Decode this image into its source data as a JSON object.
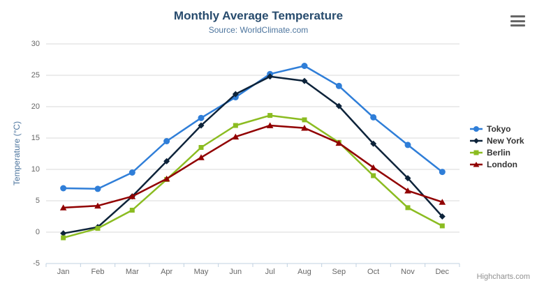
{
  "chart_data": {
    "type": "line",
    "title": "Monthly Average Temperature",
    "subtitle": "Source: WorldClimate.com",
    "categories": [
      "Jan",
      "Feb",
      "Mar",
      "Apr",
      "May",
      "Jun",
      "Jul",
      "Aug",
      "Sep",
      "Oct",
      "Nov",
      "Dec"
    ],
    "xlabel": "",
    "ylabel": "Temperature (°C)",
    "ylim": [
      -5,
      30
    ],
    "ytick_step": 5,
    "yticks": [
      "30",
      "25",
      "20",
      "15",
      "10",
      "5",
      "0",
      "-5"
    ],
    "grid": "horizontal",
    "legend_position": "right",
    "series": [
      {
        "name": "Tokyo",
        "color": "#2f7ed8",
        "marker": "circle",
        "values": [
          7.0,
          6.9,
          9.5,
          14.5,
          18.2,
          21.5,
          25.2,
          26.5,
          23.3,
          18.3,
          13.9,
          9.6
        ]
      },
      {
        "name": "New York",
        "color": "#0d233a",
        "marker": "diamond",
        "values": [
          -0.2,
          0.8,
          5.7,
          11.3,
          17.0,
          22.0,
          24.8,
          24.1,
          20.1,
          14.1,
          8.6,
          2.5
        ]
      },
      {
        "name": "Berlin",
        "color": "#8bbc21",
        "marker": "square",
        "values": [
          -0.9,
          0.6,
          3.5,
          8.4,
          13.5,
          17.0,
          18.6,
          17.9,
          14.3,
          9.0,
          3.9,
          1.0
        ]
      },
      {
        "name": "London",
        "color": "#910000",
        "marker": "triangle",
        "values": [
          3.9,
          4.2,
          5.7,
          8.5,
          11.9,
          15.2,
          17.0,
          16.6,
          14.2,
          10.3,
          6.6,
          4.8
        ]
      }
    ],
    "credits": "Highcharts.com"
  },
  "styles": {
    "title_color": "#274b6d",
    "subtitle_color": "#4d759e",
    "axis_title_color": "#4d759e",
    "tick_label_color": "#666666",
    "grid_color": "#d8d8d8",
    "axis_line_color": "#c0d0e0",
    "legend_text_color": "#333333",
    "credits_color": "#909090"
  },
  "icons": {
    "hamburger": "context-menu"
  }
}
